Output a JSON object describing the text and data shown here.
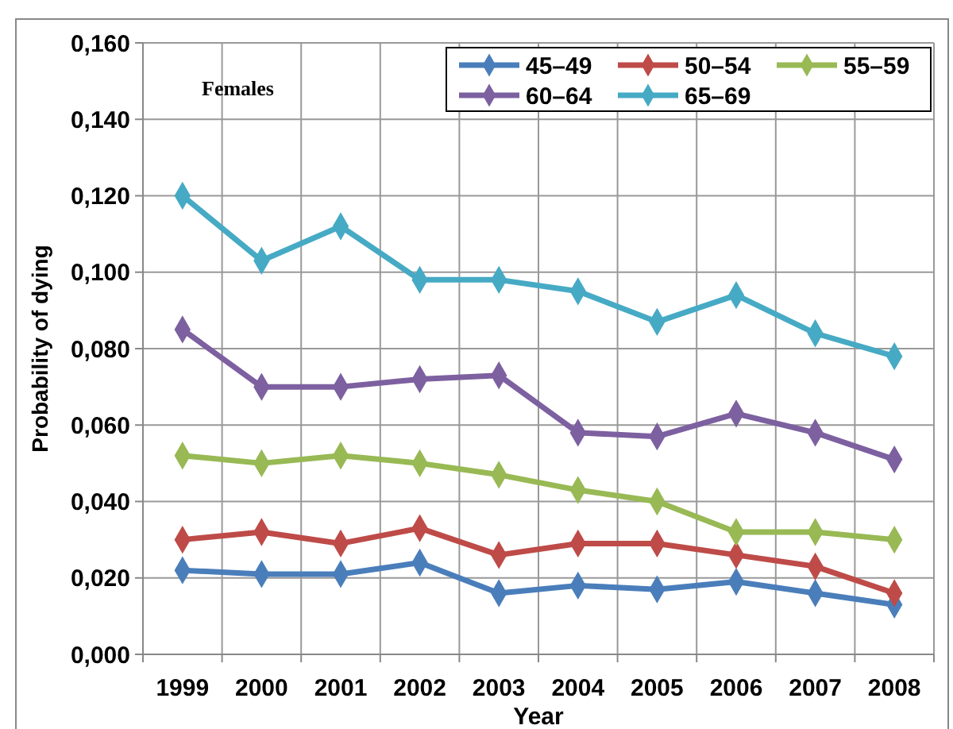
{
  "chart_data": {
    "type": "line",
    "xlabel": "Year",
    "ylabel": "Probability of dying",
    "annotations": [
      "Females"
    ],
    "categories": [
      "1999",
      "2000",
      "2001",
      "2002",
      "2003",
      "2004",
      "2005",
      "2006",
      "2007",
      "2008"
    ],
    "series": [
      {
        "name": "45–49",
        "color": "#4a7ebb",
        "values": [
          0.022,
          0.021,
          0.021,
          0.024,
          0.016,
          0.018,
          0.017,
          0.019,
          0.016,
          0.013
        ]
      },
      {
        "name": "50–54",
        "color": "#be4b48",
        "values": [
          0.03,
          0.032,
          0.029,
          0.033,
          0.026,
          0.029,
          0.029,
          0.026,
          0.023,
          0.016
        ]
      },
      {
        "name": "55–59",
        "color": "#98b954",
        "values": [
          0.052,
          0.05,
          0.052,
          0.05,
          0.047,
          0.043,
          0.04,
          0.032,
          0.032,
          0.03
        ]
      },
      {
        "name": "60–64",
        "color": "#7d60a0",
        "values": [
          0.085,
          0.07,
          0.07,
          0.072,
          0.073,
          0.058,
          0.057,
          0.063,
          0.058,
          0.051
        ]
      },
      {
        "name": "65–69",
        "color": "#46aac5",
        "values": [
          0.12,
          0.103,
          0.112,
          0.098,
          0.098,
          0.095,
          0.087,
          0.094,
          0.084,
          0.078
        ]
      }
    ],
    "ylim": [
      0,
      0.16
    ],
    "yticks": [
      {
        "value": 0,
        "label": "0,000"
      },
      {
        "value": 0.02,
        "label": "0,020"
      },
      {
        "value": 0.04,
        "label": "0,040"
      },
      {
        "value": 0.06,
        "label": "0,060"
      },
      {
        "value": 0.08,
        "label": "0,080"
      },
      {
        "value": 0.1,
        "label": "0,100"
      },
      {
        "value": 0.12,
        "label": "0,120"
      },
      {
        "value": 0.14,
        "label": "0,140"
      },
      {
        "value": 0.16,
        "label": "0,160"
      }
    ],
    "grid": true,
    "legend": "top right",
    "marker": "diamond",
    "line_style": "solid"
  }
}
